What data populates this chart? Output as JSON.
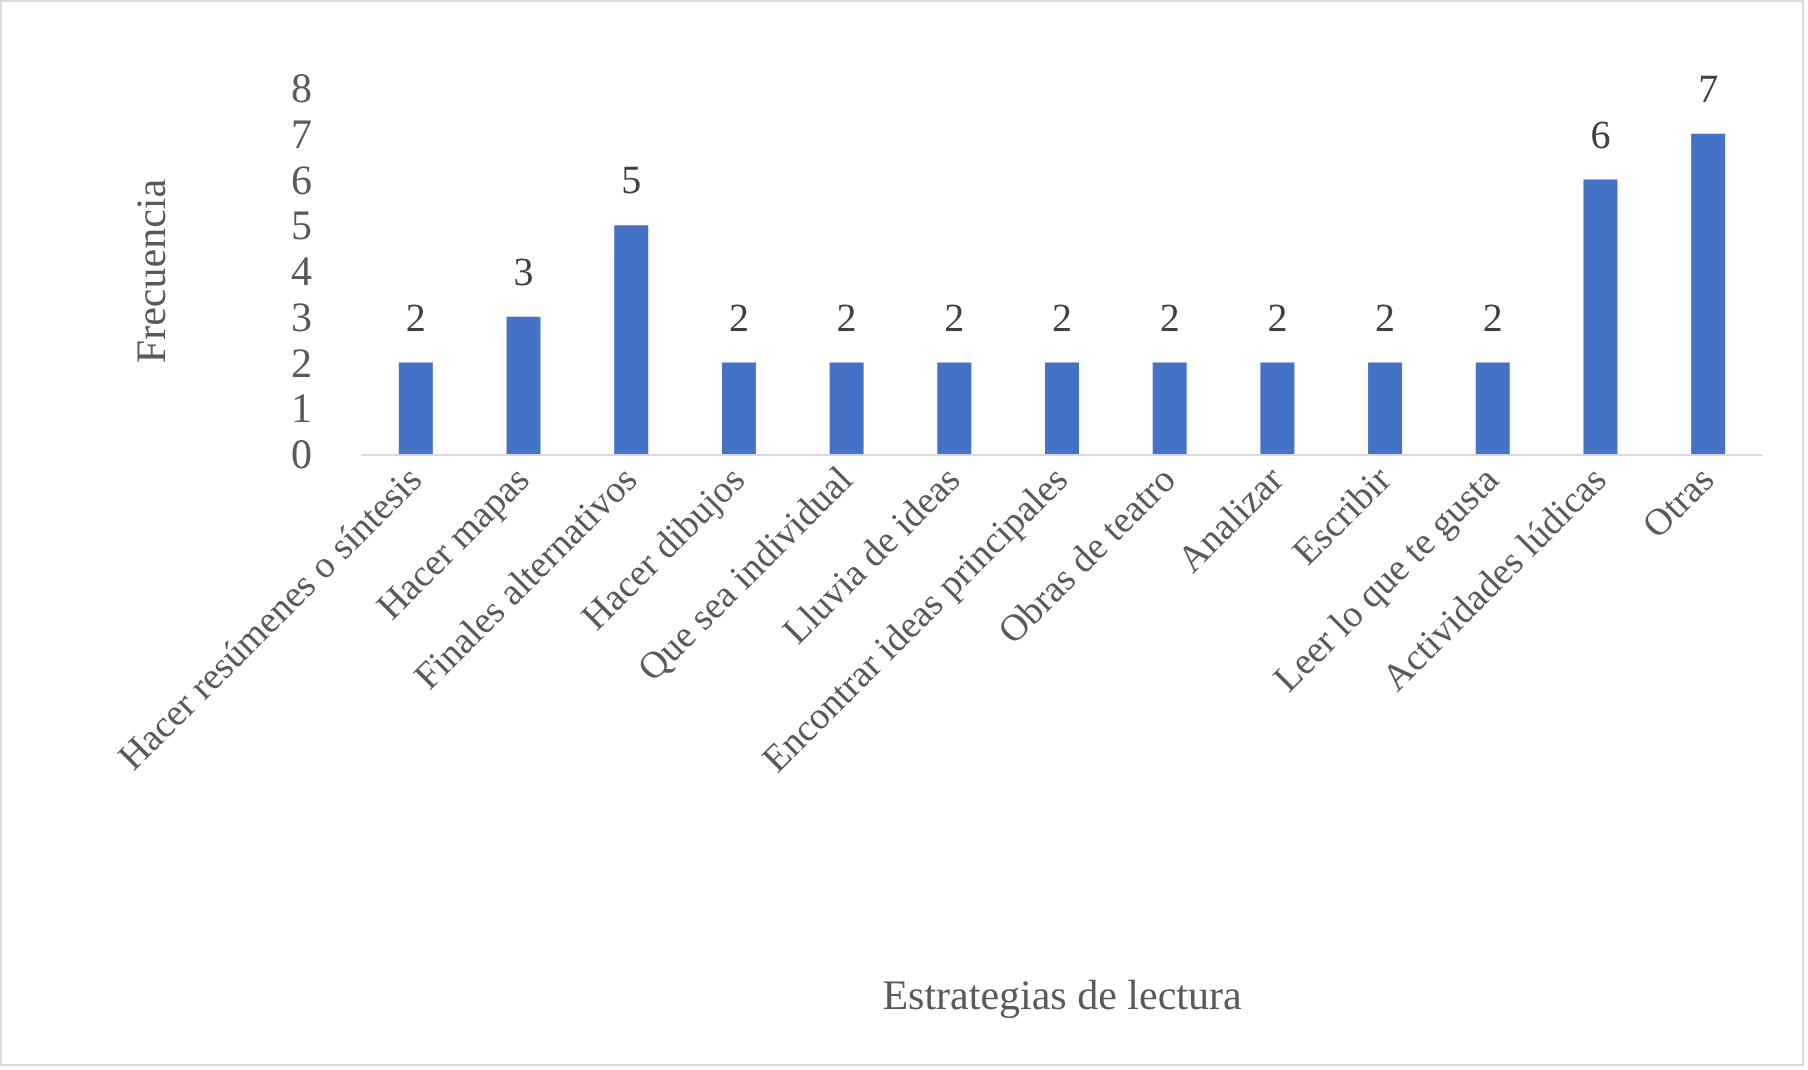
{
  "chart_data": {
    "type": "bar",
    "xlabel": "Estrategias de lectura",
    "ylabel": "Frecuencia",
    "categories": [
      "Hacer resúmenes o síntesis",
      "Hacer mapas",
      "Finales alternativos",
      "Hacer dibujos",
      "Que sea individual",
      "Lluvia de ideas",
      "Encontrar ideas principales",
      "Obras de teatro",
      "Analizar",
      "Escribir",
      "Leer lo que te gusta",
      "Actividades lúdicas",
      "Otras"
    ],
    "values": [
      2,
      3,
      5,
      2,
      2,
      2,
      2,
      2,
      2,
      2,
      2,
      6,
      7
    ],
    "color": "#4472c4",
    "ylim": [
      0,
      8
    ],
    "yticks": [
      0,
      1,
      2,
      3,
      4,
      5,
      6,
      7,
      8
    ],
    "data_labels": true
  }
}
